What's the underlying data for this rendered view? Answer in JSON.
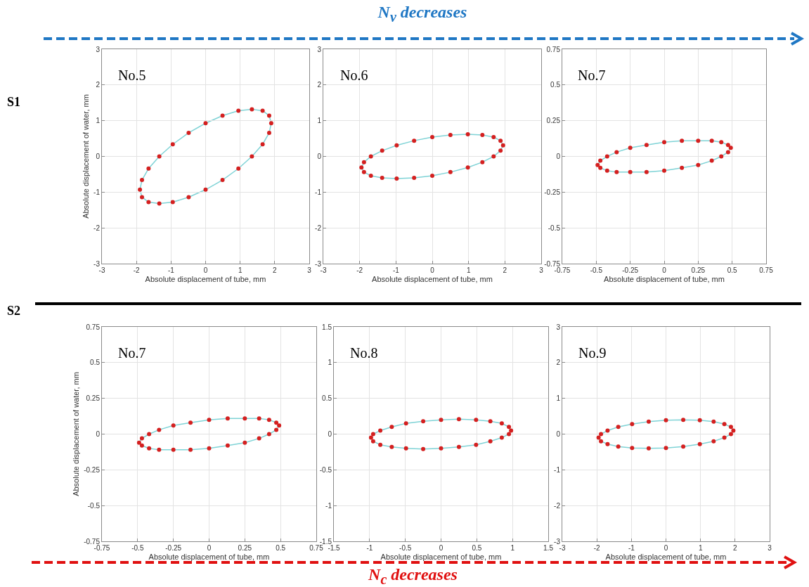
{
  "chart_data": [
    {
      "type": "scatter",
      "marker": "circle",
      "annotations": [
        "No.5",
        "S1",
        "N$_{v}$ decreases"
      ],
      "xlabel": "Absolute displacement of tube, mm",
      "ylabel": "Absolute displacement of water, mm",
      "xlim": [
        -3,
        3
      ],
      "ylim": [
        -3,
        3
      ],
      "xticks": [
        -3,
        -2,
        -1,
        0,
        1,
        2,
        3
      ],
      "yticks": [
        -3,
        -2,
        -1,
        0,
        1,
        2,
        3
      ],
      "grid": true,
      "x": [
        1.9,
        1.84,
        1.65,
        1.34,
        0.95,
        0.49,
        0,
        -0.49,
        -0.95,
        -1.34,
        -1.65,
        -1.84,
        -1.9,
        -1.84,
        -1.65,
        -1.34,
        -0.95,
        -0.49,
        0,
        0.49,
        0.95,
        1.34,
        1.65,
        1.84
      ],
      "series": [
        {
          "color": "#d42020",
          "values": [
            0.93,
            1.14,
            1.28,
            1.32,
            1.28,
            1.14,
            0.93,
            0.66,
            0.34,
            0,
            -0.34,
            -0.66,
            -0.93,
            -1.14,
            -1.28,
            -1.32,
            -1.28,
            -1.14,
            -0.93,
            -0.66,
            -0.34,
            0,
            0.34,
            0.66
          ]
        }
      ]
    },
    {
      "type": "scatter",
      "marker": "circle",
      "annotations": [
        "No.6"
      ],
      "xlabel": "Absolute displacement of tube, mm",
      "xlim": [
        -3,
        3
      ],
      "ylim": [
        -3,
        3
      ],
      "xticks": [
        -3,
        -2,
        -1,
        0,
        1,
        2,
        3
      ],
      "yticks": [
        -3,
        -2,
        -1,
        0,
        1,
        2,
        3
      ],
      "grid": true,
      "x": [
        1.95,
        1.88,
        1.69,
        1.38,
        0.98,
        0.5,
        0,
        -0.5,
        -0.98,
        -1.38,
        -1.69,
        -1.88,
        -1.95,
        -1.88,
        -1.69,
        -1.38,
        -0.98,
        -0.5,
        0,
        0.5,
        0.98,
        1.38,
        1.69,
        1.88
      ],
      "series": [
        {
          "color": "#d42020",
          "values": [
            0.31,
            0.44,
            0.54,
            0.6,
            0.62,
            0.6,
            0.54,
            0.44,
            0.31,
            0.16,
            0,
            -0.16,
            -0.31,
            -0.44,
            -0.54,
            -0.6,
            -0.62,
            -0.6,
            -0.54,
            -0.44,
            -0.31,
            -0.16,
            0,
            0.16
          ]
        }
      ]
    },
    {
      "type": "scatter",
      "marker": "circle",
      "annotations": [
        "No.7"
      ],
      "xlabel": "Absolute displacement of tube, mm",
      "xlim": [
        -0.75,
        0.75
      ],
      "ylim": [
        -0.75,
        0.75
      ],
      "xticks": [
        -0.75,
        -0.5,
        -0.25,
        0,
        0.25,
        0.5,
        0.75
      ],
      "yticks": [
        -0.75,
        -0.5,
        -0.25,
        0,
        0.25,
        0.5,
        0.75
      ],
      "grid": true,
      "x": [
        0.49,
        0.47,
        0.42,
        0.35,
        0.25,
        0.13,
        0,
        -0.13,
        -0.25,
        -0.35,
        -0.42,
        -0.47,
        -0.49,
        -0.47,
        -0.42,
        -0.35,
        -0.25,
        -0.13,
        0,
        0.13,
        0.25,
        0.35,
        0.42,
        0.47
      ],
      "series": [
        {
          "color": "#d42020",
          "values": [
            0.06,
            0.08,
            0.1,
            0.11,
            0.11,
            0.11,
            0.1,
            0.08,
            0.06,
            0.03,
            0,
            -0.03,
            -0.06,
            -0.08,
            -0.1,
            -0.11,
            -0.11,
            -0.11,
            -0.1,
            -0.08,
            -0.06,
            -0.03,
            0,
            0.03
          ]
        }
      ]
    },
    {
      "type": "scatter",
      "marker": "circle",
      "annotations": [
        "No.7",
        "S2",
        "N$_{c}$ decreases"
      ],
      "xlabel": "Absolute displacement of tube, mm",
      "ylabel": "Absolute displacement of water, mm",
      "xlim": [
        -0.75,
        0.75
      ],
      "ylim": [
        -0.75,
        0.75
      ],
      "xticks": [
        -0.75,
        -0.5,
        -0.25,
        0,
        0.25,
        0.5,
        0.75
      ],
      "yticks": [
        -0.75,
        -0.5,
        -0.25,
        0,
        0.25,
        0.5,
        0.75
      ],
      "grid": true,
      "x": [
        0.49,
        0.47,
        0.42,
        0.35,
        0.25,
        0.13,
        0,
        -0.13,
        -0.25,
        -0.35,
        -0.42,
        -0.47,
        -0.49,
        -0.47,
        -0.42,
        -0.35,
        -0.25,
        -0.13,
        0,
        0.13,
        0.25,
        0.35,
        0.42,
        0.47
      ],
      "series": [
        {
          "color": "#d42020",
          "values": [
            0.06,
            0.08,
            0.1,
            0.11,
            0.11,
            0.11,
            0.1,
            0.08,
            0.06,
            0.03,
            0,
            -0.03,
            -0.06,
            -0.08,
            -0.1,
            -0.11,
            -0.11,
            -0.11,
            -0.1,
            -0.08,
            -0.06,
            -0.03,
            0,
            0.03
          ]
        }
      ]
    },
    {
      "type": "scatter",
      "marker": "circle",
      "annotations": [
        "No.8"
      ],
      "xlabel": "Absolute displacement of tube, mm",
      "xlim": [
        -1.5,
        1.5
      ],
      "ylim": [
        -1.5,
        1.5
      ],
      "xticks": [
        -1.5,
        -1,
        -0.5,
        0,
        0.5,
        1,
        1.5
      ],
      "yticks": [
        -1.5,
        -1,
        -0.5,
        0,
        0.5,
        1,
        1.5
      ],
      "grid": true,
      "x": [
        0.98,
        0.95,
        0.85,
        0.69,
        0.49,
        0.25,
        0,
        -0.25,
        -0.49,
        -0.69,
        -0.85,
        -0.95,
        -0.98,
        -0.95,
        -0.85,
        -0.69,
        -0.49,
        -0.25,
        0,
        0.25,
        0.49,
        0.69,
        0.85,
        0.95
      ],
      "series": [
        {
          "color": "#d42020",
          "values": [
            0.05,
            0.1,
            0.15,
            0.18,
            0.2,
            0.21,
            0.2,
            0.18,
            0.15,
            0.1,
            0.05,
            0,
            -0.05,
            -0.1,
            -0.15,
            -0.18,
            -0.2,
            -0.21,
            -0.2,
            -0.18,
            -0.15,
            -0.1,
            -0.05,
            0
          ]
        }
      ]
    },
    {
      "type": "scatter",
      "marker": "circle",
      "annotations": [
        "No.9"
      ],
      "xlabel": "Absolute displacement of tube, mm",
      "xlim": [
        -3,
        3
      ],
      "ylim": [
        -3,
        3
      ],
      "xticks": [
        -3,
        -2,
        -1,
        0,
        1,
        2,
        3
      ],
      "yticks": [
        -3,
        -2,
        -1,
        0,
        1,
        2,
        3
      ],
      "grid": true,
      "x": [
        1.95,
        1.88,
        1.69,
        1.38,
        0.98,
        0.5,
        0,
        -0.5,
        -0.98,
        -1.38,
        -1.69,
        -1.88,
        -1.95,
        -1.88,
        -1.69,
        -1.38,
        -0.98,
        -0.5,
        0,
        0.5,
        0.98,
        1.38,
        1.69,
        1.88
      ],
      "series": [
        {
          "color": "#d42020",
          "values": [
            0.1,
            0.2,
            0.28,
            0.35,
            0.39,
            0.4,
            0.39,
            0.35,
            0.28,
            0.2,
            0.1,
            0,
            -0.1,
            -0.2,
            -0.28,
            -0.35,
            -0.39,
            -0.4,
            -0.39,
            -0.35,
            -0.28,
            -0.2,
            -0.1,
            0
          ]
        }
      ]
    }
  ]
}
